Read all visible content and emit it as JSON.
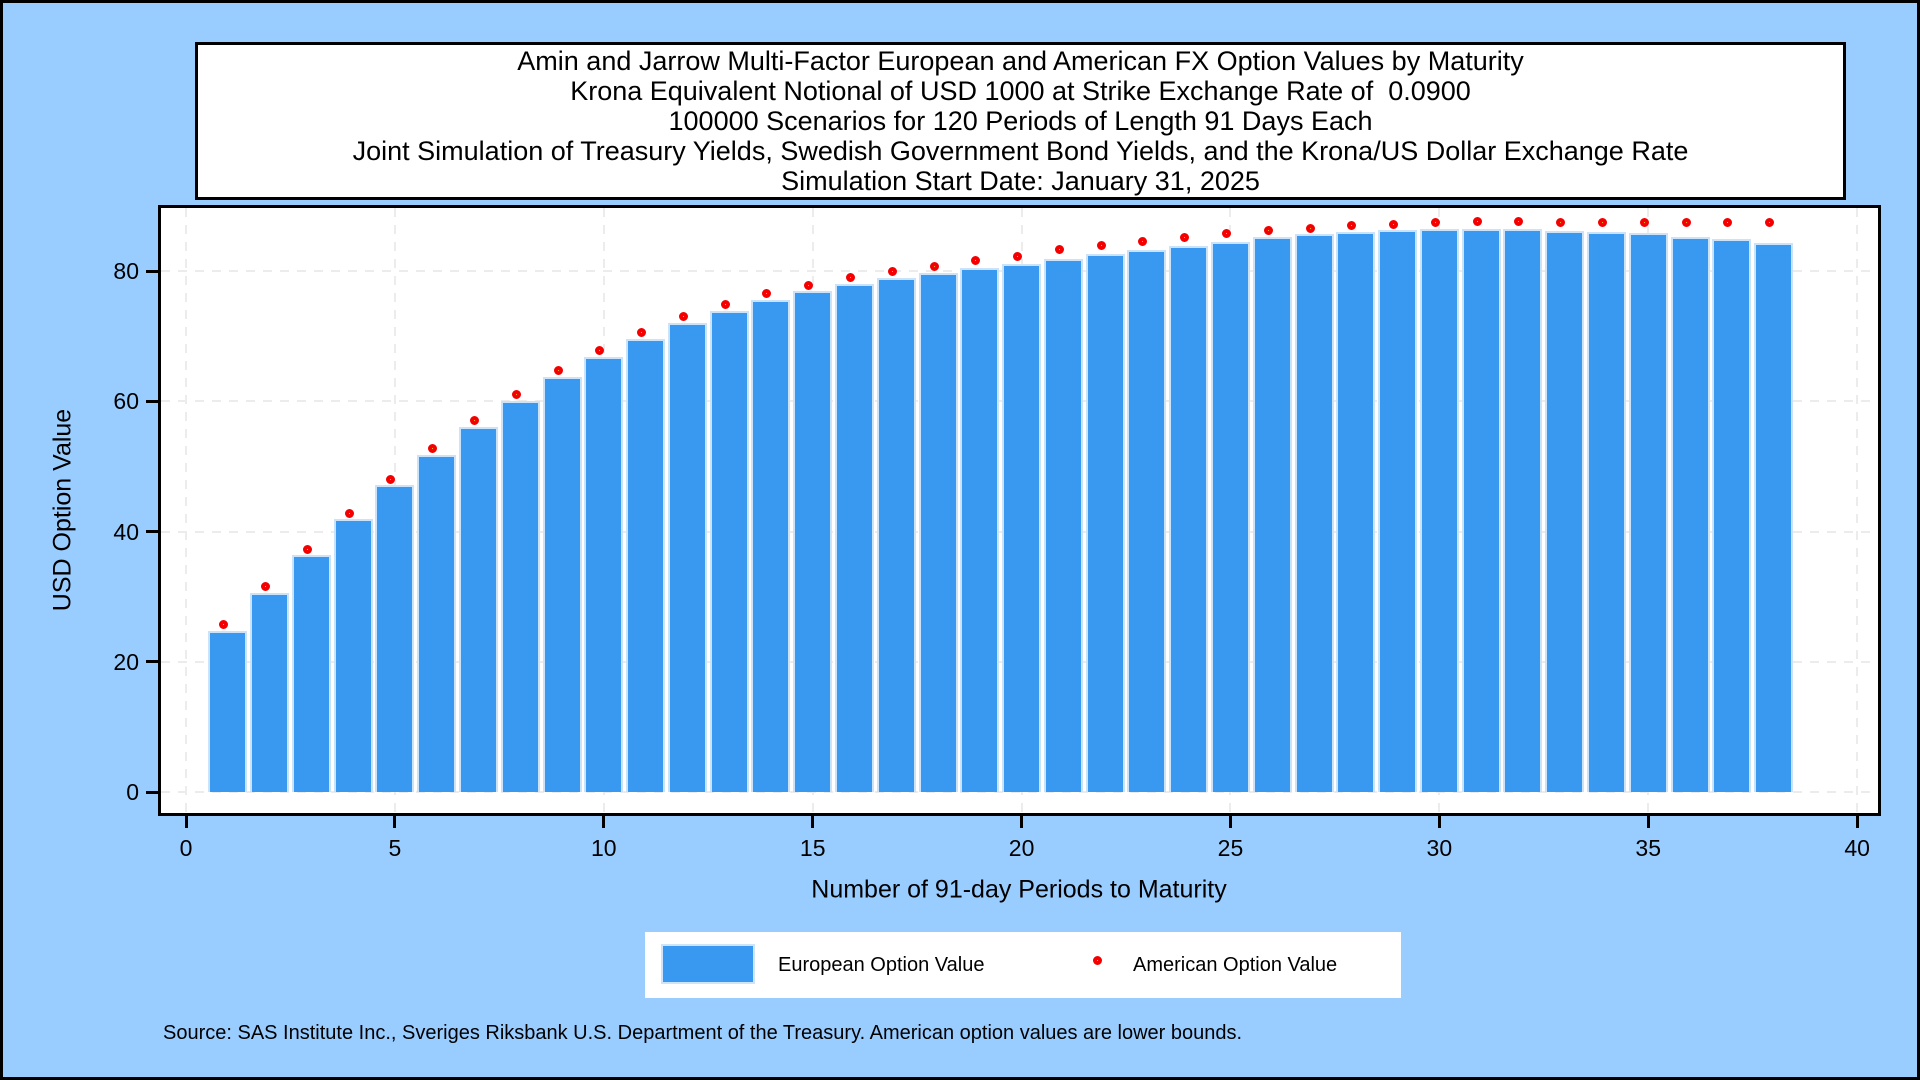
{
  "figure": {
    "source_note": "Source: SAS Institute Inc., Sveriges Riksbank U.S. Department of the Treasury. American option values are lower bounds.",
    "colors": {
      "background": "#99CCFF",
      "plot_background": "#FFFFFF",
      "bar_fill": "#3999F0",
      "bar_outline": "#CBE3FA",
      "marker_ring": "#F40000",
      "marker_fill": "#FFEB00",
      "gridline": "#ECECEC",
      "border": "#000000"
    }
  },
  "legend": {
    "european_label": "European Option Value",
    "american_label": "American Option Value"
  },
  "chart_data": {
    "type": "bar",
    "title_lines": [
      "Amin and Jarrow Multi-Factor European and American FX Option Values by Maturity",
      "Krona Equivalent Notional of USD 1000 at Strike Exchange Rate of  0.0900",
      "100000 Scenarios for 120 Periods of Length 91 Days Each",
      "Joint Simulation of Treasury Yields, Swedish Government Bond Yields, and the Krona/US Dollar Exchange Rate",
      "Simulation Start Date: January 31, 2025"
    ],
    "xlabel": "Number of 91-day Periods to Maturity",
    "ylabel": "USD Option Value",
    "x": [
      1,
      2,
      3,
      4,
      5,
      6,
      7,
      8,
      9,
      10,
      11,
      12,
      13,
      14,
      15,
      16,
      17,
      18,
      19,
      20,
      21,
      22,
      23,
      24,
      25,
      26,
      27,
      28,
      29,
      30,
      31,
      32,
      33,
      34,
      35,
      36,
      37,
      38
    ],
    "series": [
      {
        "name": "European Option Value",
        "type": "bar",
        "values": [
          24.8,
          30.6,
          36.4,
          42.0,
          47.2,
          51.8,
          56.1,
          60.0,
          63.8,
          66.8,
          69.6,
          72.0,
          73.9,
          75.6,
          76.9,
          78.0,
          78.9,
          79.7,
          80.5,
          81.1,
          81.9,
          82.7,
          83.2,
          83.8,
          84.5,
          85.2,
          85.7,
          86.0,
          86.3,
          86.4,
          86.4,
          86.4,
          86.2,
          86.0,
          85.8,
          85.2,
          85.0,
          84.3
        ]
      },
      {
        "name": "American Option Value",
        "type": "scatter",
        "values": [
          25.1,
          30.9,
          36.6,
          42.2,
          47.4,
          52.2,
          56.5,
          60.4,
          64.2,
          67.2,
          70.0,
          72.4,
          74.3,
          76.0,
          77.2,
          78.4,
          79.4,
          80.1,
          81.0,
          81.6,
          82.7,
          83.3,
          83.9,
          84.6,
          85.1,
          85.7,
          86.0,
          86.4,
          86.6,
          86.9,
          87.0,
          87.0,
          86.9,
          86.9,
          86.9,
          86.9,
          86.9,
          86.9
        ]
      }
    ],
    "xticks": [
      0,
      5,
      10,
      15,
      20,
      25,
      30,
      35,
      40
    ],
    "yticks": [
      0,
      20,
      40,
      60,
      80
    ],
    "xlim": [
      -0.6,
      40.5
    ],
    "ylim": [
      -3.2,
      89.7
    ],
    "grid": "dashed gridlines at every x and y tick",
    "legend_position": "bottom-center"
  }
}
